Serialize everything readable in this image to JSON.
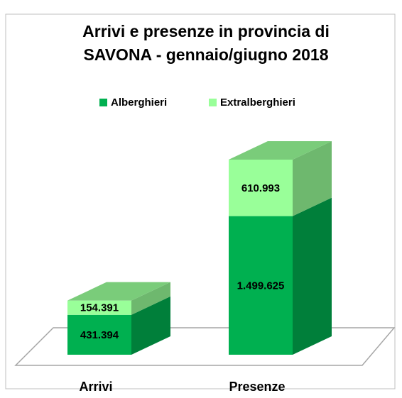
{
  "chart_data": {
    "type": "bar3d_stacked",
    "title": [
      "Arrivi e presenze  in provincia di",
      "SAVONA - gennaio/giugno 2018"
    ],
    "categories": [
      "Arrivi",
      "Presenze"
    ],
    "series": [
      {
        "name": "Alberghieri",
        "color": "#00b050",
        "values": [
          431394,
          1499625
        ],
        "value_labels": [
          "431.394",
          "1.499.625"
        ]
      },
      {
        "name": "Extralberghieri",
        "color": "#99ff99",
        "values": [
          154391,
          610993
        ],
        "value_labels": [
          "154.391",
          "610.993"
        ]
      }
    ],
    "legend": "top"
  }
}
